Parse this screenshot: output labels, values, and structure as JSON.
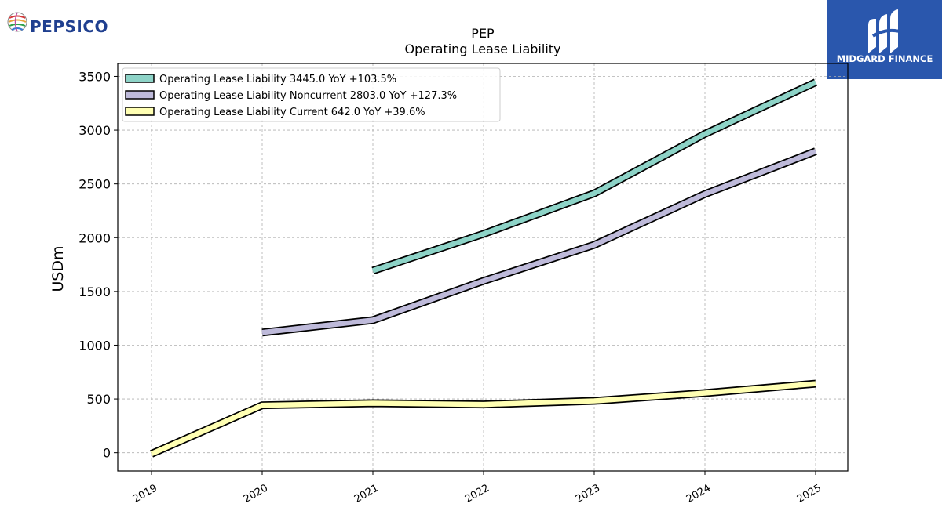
{
  "branding": {
    "company_logo_text": "PEPSICO",
    "company_logo_color": "#1f3f8f",
    "watermark_text": "MIDGARD FINANCE",
    "watermark_bg": "#2a57ad"
  },
  "chart_data": {
    "type": "line",
    "title": "PEP",
    "subtitle": "Operating Lease Liability",
    "xlabel": "",
    "ylabel": "USDm",
    "categories": [
      "2019",
      "2020",
      "2021",
      "2022",
      "2023",
      "2024",
      "2025"
    ],
    "ylim": [
      -170,
      3620
    ],
    "yticks": [
      0,
      500,
      1000,
      1500,
      2000,
      2500,
      3000,
      3500
    ],
    "grid": true,
    "legend_position": "top-left",
    "series": [
      {
        "name": "Operating Lease Liability",
        "legend_label": "Operating Lease Liability  3445.0 YoY +103.5%",
        "color": "#8dd3c7",
        "values": [
          null,
          null,
          1693,
          2035,
          2412,
          2965,
          3445
        ]
      },
      {
        "name": "Operating Lease Liability Noncurrent",
        "legend_label": "Operating Lease Liability Noncurrent  2803.0 YoY +127.3%",
        "color": "#bebada",
        "values": [
          null,
          1118,
          1233,
          1598,
          1933,
          2406,
          2803
        ]
      },
      {
        "name": "Operating Lease Liability Current",
        "legend_label": "Operating Lease Liability Current  642.0 YoY +39.6%",
        "color": "#ffffb3",
        "values": [
          -10,
          441,
          460,
          449,
          482,
          555,
          642
        ]
      }
    ]
  }
}
